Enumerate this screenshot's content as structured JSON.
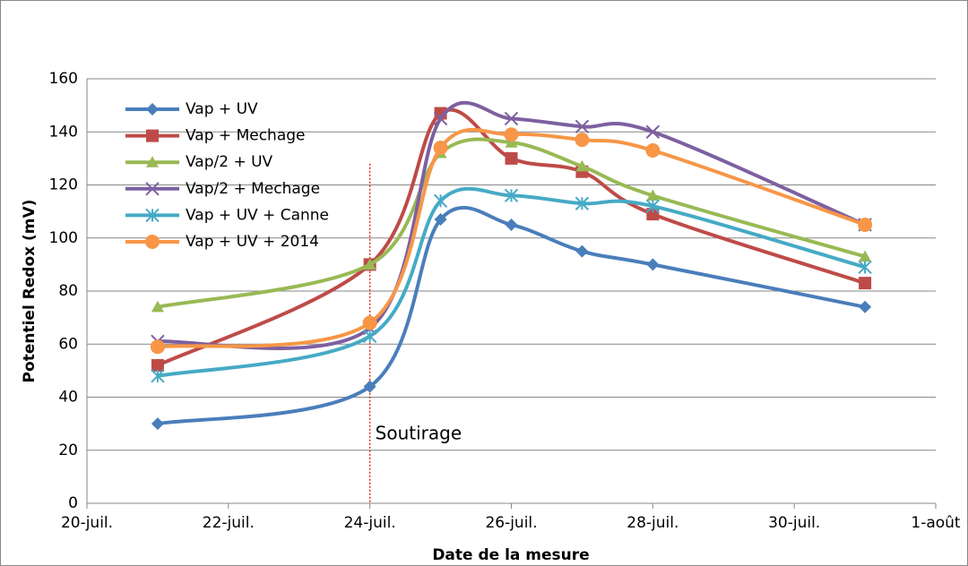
{
  "chart_data": {
    "type": "line",
    "x_label": "Date de la mesure",
    "y_label": "Potentiel Redox (mV)",
    "x": [
      21,
      24,
      25,
      26,
      27,
      28,
      31
    ],
    "series": [
      {
        "name": "Vap + UV",
        "color": "#4a7ebb",
        "marker": "diamond",
        "values": [
          30,
          44,
          107,
          105,
          95,
          90,
          74
        ]
      },
      {
        "name": "Vap + Mechage",
        "color": "#be4b48",
        "marker": "square",
        "values": [
          52,
          90,
          147,
          130,
          125,
          109,
          83
        ]
      },
      {
        "name": "Vap/2 + UV",
        "color": "#98b954",
        "marker": "triangle",
        "values": [
          74,
          90,
          132,
          136,
          127,
          116,
          93
        ]
      },
      {
        "name": "Vap/2 + Mechage",
        "color": "#7d60a0",
        "marker": "x",
        "values": [
          61,
          66,
          145,
          145,
          142,
          140,
          105
        ]
      },
      {
        "name": "Vap + UV + Canne",
        "color": "#46aac5",
        "marker": "star",
        "values": [
          48,
          63,
          114,
          116,
          113,
          112,
          89
        ]
      },
      {
        "name": "Vap + UV + 2014",
        "color": "#f79646",
        "marker": "circle",
        "values": [
          59,
          68,
          134,
          139,
          137,
          133,
          105
        ]
      }
    ],
    "xlim": [
      20,
      32
    ],
    "xticks": [
      {
        "value": 20,
        "label": "20-juil."
      },
      {
        "value": 22,
        "label": "22-juil."
      },
      {
        "value": 24,
        "label": "24-juil."
      },
      {
        "value": 26,
        "label": "26-juil."
      },
      {
        "value": 28,
        "label": "28-juil."
      },
      {
        "value": 30,
        "label": "30-juil."
      },
      {
        "value": 32,
        "label": "1-août"
      }
    ],
    "ylim": [
      0,
      160
    ],
    "yticks": [
      0,
      20,
      40,
      60,
      80,
      100,
      120,
      140,
      160
    ],
    "grid": true,
    "legend": "top-left",
    "annotation": {
      "text": "Soutirage",
      "x": 24,
      "y": 128,
      "color": "#e8261c"
    }
  }
}
